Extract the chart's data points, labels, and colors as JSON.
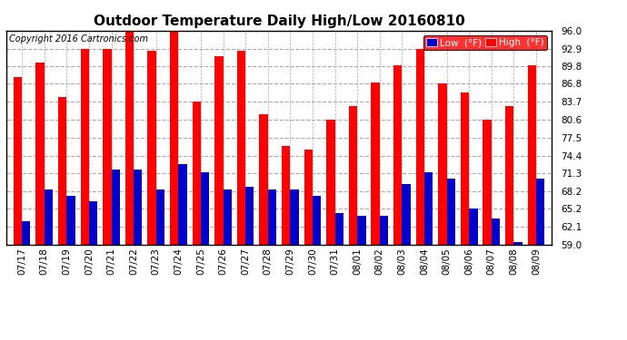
{
  "title": "Outdoor Temperature Daily High/Low 20160810",
  "copyright": "Copyright 2016 Cartronics.com",
  "legend_low": "Low  (°F)",
  "legend_high": "High  (°F)",
  "dates": [
    "07/17",
    "07/18",
    "07/19",
    "07/20",
    "07/21",
    "07/22",
    "07/23",
    "07/24",
    "07/25",
    "07/26",
    "07/27",
    "07/28",
    "07/29",
    "07/30",
    "07/31",
    "08/01",
    "08/02",
    "08/03",
    "08/04",
    "08/05",
    "08/06",
    "08/07",
    "08/08",
    "08/09"
  ],
  "high": [
    88.0,
    90.5,
    84.5,
    92.9,
    92.9,
    96.0,
    92.5,
    95.8,
    83.7,
    91.5,
    92.5,
    81.5,
    76.0,
    75.5,
    80.6,
    82.9,
    87.0,
    90.0,
    92.9,
    86.8,
    85.3,
    80.6,
    82.9,
    90.0
  ],
  "low": [
    63.0,
    68.5,
    67.5,
    66.5,
    72.0,
    72.0,
    68.5,
    73.0,
    71.5,
    68.5,
    69.0,
    68.5,
    68.5,
    67.5,
    64.5,
    64.0,
    64.0,
    69.5,
    71.5,
    70.5,
    65.2,
    63.5,
    59.5,
    70.5
  ],
  "ylim": [
    59.0,
    96.0
  ],
  "yticks": [
    59.0,
    62.1,
    65.2,
    68.2,
    71.3,
    74.4,
    77.5,
    80.6,
    83.7,
    86.8,
    89.8,
    92.9,
    96.0
  ],
  "high_color": "#FF0000",
  "low_color": "#0000CC",
  "bg_color": "#FFFFFF",
  "grid_color": "#AAAAAA",
  "title_fontsize": 11,
  "tick_fontsize": 7.5,
  "copyright_fontsize": 7
}
